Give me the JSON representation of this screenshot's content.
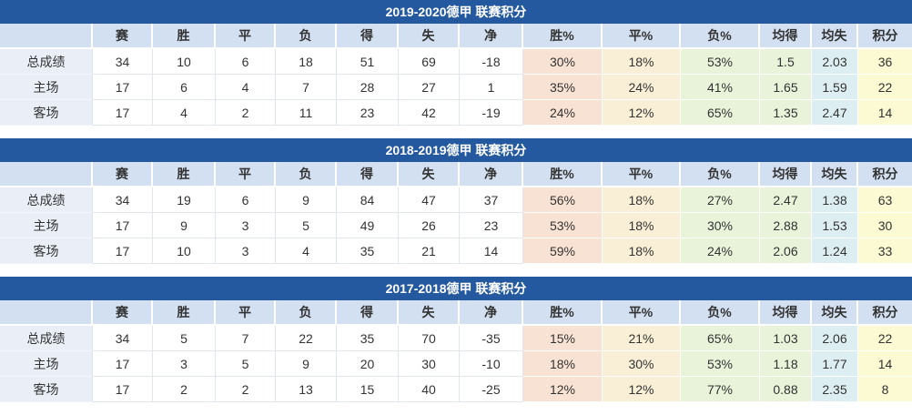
{
  "colors": {
    "title_bar_bg": "#24599f",
    "title_text": "#ffffff",
    "header_row_bg": "#d3e0f1",
    "row_label_bg": "#eaeff7",
    "win_pct_bg": "#f8e2d3",
    "draw_pct_bg": "#f8efd6",
    "loss_pct_bg": "#e8f3da",
    "avg_for_bg": "#e8f3da",
    "avg_against_bg": "#ddeef2",
    "points_bg": "#fbfad2",
    "text": "#333333"
  },
  "columns": [
    "赛",
    "胜",
    "平",
    "负",
    "得",
    "失",
    "净",
    "胜%",
    "平%",
    "负%",
    "均得",
    "均失",
    "积分"
  ],
  "tables": [
    {
      "title": "2019-2020德甲 联赛积分",
      "rows": [
        {
          "label": "总成绩",
          "values": [
            "34",
            "10",
            "6",
            "18",
            "51",
            "69",
            "-18",
            "30%",
            "18%",
            "53%",
            "1.5",
            "2.03",
            "36"
          ]
        },
        {
          "label": "主场",
          "values": [
            "17",
            "6",
            "4",
            "7",
            "28",
            "27",
            "1",
            "35%",
            "24%",
            "41%",
            "1.65",
            "1.59",
            "22"
          ]
        },
        {
          "label": "客场",
          "values": [
            "17",
            "4",
            "2",
            "11",
            "23",
            "42",
            "-19",
            "24%",
            "12%",
            "65%",
            "1.35",
            "2.47",
            "14"
          ]
        }
      ]
    },
    {
      "title": "2018-2019德甲 联赛积分",
      "rows": [
        {
          "label": "总成绩",
          "values": [
            "34",
            "19",
            "6",
            "9",
            "84",
            "47",
            "37",
            "56%",
            "18%",
            "27%",
            "2.47",
            "1.38",
            "63"
          ]
        },
        {
          "label": "主场",
          "values": [
            "17",
            "9",
            "3",
            "5",
            "49",
            "26",
            "23",
            "53%",
            "18%",
            "30%",
            "2.88",
            "1.53",
            "30"
          ]
        },
        {
          "label": "客场",
          "values": [
            "17",
            "10",
            "3",
            "4",
            "35",
            "21",
            "14",
            "59%",
            "18%",
            "24%",
            "2.06",
            "1.24",
            "33"
          ]
        }
      ]
    },
    {
      "title": "2017-2018德甲 联赛积分",
      "rows": [
        {
          "label": "总成绩",
          "values": [
            "34",
            "5",
            "7",
            "22",
            "35",
            "70",
            "-35",
            "15%",
            "21%",
            "65%",
            "1.03",
            "2.06",
            "22"
          ]
        },
        {
          "label": "主场",
          "values": [
            "17",
            "3",
            "5",
            "9",
            "20",
            "30",
            "-10",
            "18%",
            "30%",
            "53%",
            "1.18",
            "1.77",
            "14"
          ]
        },
        {
          "label": "客场",
          "values": [
            "17",
            "2",
            "2",
            "13",
            "15",
            "40",
            "-25",
            "12%",
            "12%",
            "77%",
            "0.88",
            "2.35",
            "8"
          ]
        }
      ]
    }
  ]
}
